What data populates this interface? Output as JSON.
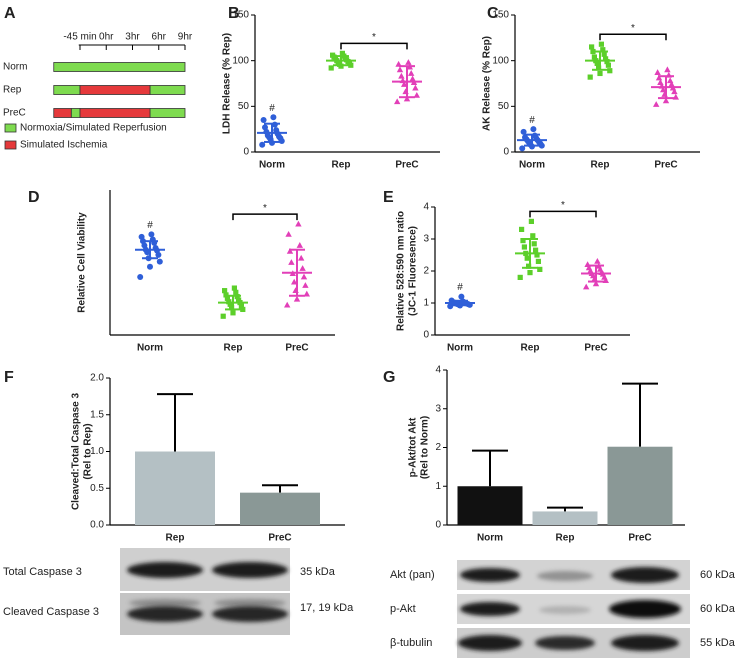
{
  "chart_data": [
    {
      "panel": "A",
      "type": "timeline",
      "xlim": [
        -1.5,
        9
      ],
      "xticks": [
        {
          "value": -0.75,
          "label": "-45 min"
        },
        {
          "value": 0,
          "label": "0hr"
        },
        {
          "value": 3,
          "label": "3hr"
        },
        {
          "value": 6,
          "label": "6hr"
        },
        {
          "value": 9,
          "label": "9hr"
        }
      ],
      "categories": [
        "Norm",
        "Rep",
        "PreC"
      ],
      "series": [
        {
          "name": "Normoxia/Simulated Reperfusion",
          "color": "#7edb4f",
          "segments": [
            [
              [
                -1.5,
                9
              ]
            ],
            [
              [
                -1.5,
                -0.75
              ],
              [
                5,
                9
              ]
            ],
            [
              [
                -1,
                -0.75
              ],
              [
                5,
                9
              ]
            ]
          ]
        },
        {
          "name": "Simulated Ischemia",
          "color": "#e5393b",
          "segments": [
            [],
            [
              [
                -0.75,
                5
              ]
            ],
            [
              [
                -1.5,
                -1
              ],
              [
                -0.75,
                5
              ]
            ]
          ]
        }
      ]
    },
    {
      "panel": "B",
      "type": "dotplot",
      "ylabel": [
        "LDH Release (% Rep)"
      ],
      "ylim": [
        0,
        150
      ],
      "yticks": [
        0,
        50,
        100,
        150
      ],
      "categories": [
        "Norm",
        "Rep",
        "PreC"
      ],
      "hash_label": "#",
      "sig_label": "*",
      "groups": [
        {
          "color": "#2f5fd8",
          "marker": "circle",
          "mean": 21,
          "sd": 10,
          "points": [
            8,
            10,
            12,
            14,
            15,
            16,
            17,
            18,
            20,
            22,
            24,
            27,
            30,
            35,
            38
          ]
        },
        {
          "color": "#5ccf2a",
          "marker": "square",
          "mean": 100,
          "sd": 5,
          "points": [
            92,
            94,
            95,
            96,
            97,
            98,
            99,
            100,
            101,
            102,
            103,
            104,
            105,
            106,
            108
          ]
        },
        {
          "color": "#e23fb8",
          "marker": "triangle",
          "mean": 77,
          "sd": 17,
          "points": [
            55,
            58,
            62,
            66,
            70,
            74,
            76,
            78,
            80,
            83,
            86,
            90,
            93,
            96,
            98
          ]
        }
      ]
    },
    {
      "panel": "C",
      "type": "dotplot",
      "ylabel": [
        "AK Release (% Rep)"
      ],
      "ylim": [
        0,
        150
      ],
      "yticks": [
        0,
        50,
        100,
        150
      ],
      "categories": [
        "Norm",
        "Rep",
        "PreC"
      ],
      "hash_label": "#",
      "sig_label": "*",
      "groups": [
        {
          "color": "#2f5fd8",
          "marker": "circle",
          "mean": 13,
          "sd": 6,
          "points": [
            4,
            6,
            7,
            8,
            9,
            10,
            11,
            12,
            13,
            14,
            15,
            16,
            18,
            22,
            25
          ]
        },
        {
          "color": "#5ccf2a",
          "marker": "square",
          "mean": 100,
          "sd": 10,
          "points": [
            82,
            86,
            89,
            92,
            95,
            97,
            99,
            100,
            102,
            104,
            107,
            110,
            112,
            115,
            118
          ]
        },
        {
          "color": "#e23fb8",
          "marker": "triangle",
          "mean": 71,
          "sd": 12,
          "points": [
            52,
            56,
            60,
            63,
            66,
            68,
            70,
            72,
            74,
            76,
            78,
            81,
            84,
            87,
            90
          ]
        }
      ]
    },
    {
      "panel": "D",
      "type": "dotplot",
      "ylabel": [
        "Relative Cell Viability"
      ],
      "ylim": [
        0,
        1.7
      ],
      "categories": [
        "Norm",
        "Rep",
        "PreC"
      ],
      "hash_label": "#",
      "sig_label": "*",
      "groups": [
        {
          "color": "#2f5fd8",
          "marker": "circle",
          "mean": 1.0,
          "sd": 0.1,
          "points": [
            0.68,
            0.8,
            0.86,
            0.9,
            0.94,
            0.97,
            0.99,
            1.0,
            1.02,
            1.05,
            1.08,
            1.1,
            1.12,
            1.15,
            1.18
          ]
        },
        {
          "color": "#5ccf2a",
          "marker": "square",
          "mean": 0.38,
          "sd": 0.08,
          "points": [
            0.22,
            0.26,
            0.3,
            0.32,
            0.34,
            0.36,
            0.38,
            0.39,
            0.41,
            0.43,
            0.45,
            0.47,
            0.5,
            0.52,
            0.55
          ]
        },
        {
          "color": "#e23fb8",
          "marker": "triangle",
          "mean": 0.73,
          "sd": 0.27,
          "points": [
            0.35,
            0.42,
            0.48,
            0.52,
            0.58,
            0.62,
            0.68,
            0.72,
            0.78,
            0.85,
            0.9,
            0.98,
            1.05,
            1.18,
            1.3
          ]
        }
      ]
    },
    {
      "panel": "E",
      "type": "dotplot",
      "ylabel": [
        "Relative 528:590 nm ratio",
        "(JC-1 Fluoresence)"
      ],
      "ylim": [
        0,
        4
      ],
      "yticks": [
        0,
        1,
        2,
        3,
        4
      ],
      "categories": [
        "Norm",
        "Rep",
        "PreC"
      ],
      "hash_label": "#",
      "sig_label": "*",
      "groups": [
        {
          "color": "#2f5fd8",
          "marker": "circle",
          "mean": 1.0,
          "sd": 0.07,
          "points": [
            0.9,
            0.92,
            0.94,
            0.95,
            0.96,
            0.97,
            0.98,
            0.99,
            1.0,
            1.01,
            1.02,
            1.03,
            1.05,
            1.08,
            1.2
          ]
        },
        {
          "color": "#5ccf2a",
          "marker": "square",
          "mean": 2.55,
          "sd": 0.45,
          "points": [
            1.8,
            1.95,
            2.05,
            2.15,
            2.3,
            2.4,
            2.5,
            2.55,
            2.65,
            2.75,
            2.85,
            2.95,
            3.1,
            3.3,
            3.55
          ]
        },
        {
          "color": "#e23fb8",
          "marker": "triangle",
          "mean": 1.92,
          "sd": 0.25,
          "points": [
            1.5,
            1.6,
            1.7,
            1.75,
            1.8,
            1.85,
            1.9,
            1.92,
            1.95,
            2.0,
            2.05,
            2.1,
            2.15,
            2.2,
            2.3
          ]
        }
      ]
    },
    {
      "panel": "F",
      "type": "bar",
      "ylabel": [
        "Cleaved:Total Caspase 3",
        "(Rel to Rep)"
      ],
      "ylim": [
        0,
        2
      ],
      "yticks": [
        {
          "value": 0,
          "label": "0.0"
        },
        {
          "value": 0.5,
          "label": "0.5"
        },
        {
          "value": 1,
          "label": "1.0"
        },
        {
          "value": 1.5,
          "label": "1.5"
        },
        {
          "value": 2,
          "label": "2.0"
        }
      ],
      "categories": [
        "Rep",
        "PreC"
      ],
      "values": [
        1.0,
        0.44
      ],
      "errors": [
        0.78,
        0.1
      ],
      "colors": [
        "#b4c0c4",
        "#8a9896"
      ],
      "blot": [
        {
          "label": "Total Caspase 3",
          "size": "35 kDa"
        },
        {
          "label": "Cleaved Caspase 3",
          "size": "17, 19 kDa"
        }
      ]
    },
    {
      "panel": "G",
      "type": "bar",
      "ylabel": [
        "p-Akt/tot Akt",
        "(Rel to Norm)"
      ],
      "ylim": [
        0,
        4
      ],
      "yticks": [
        0,
        1,
        2,
        3,
        4
      ],
      "categories": [
        "Norm",
        "Rep",
        "PreC"
      ],
      "values": [
        1.0,
        0.35,
        2.02
      ],
      "errors": [
        0.92,
        0.1,
        1.63
      ],
      "colors": [
        "#111111",
        "#b4c0c4",
        "#8a9896"
      ],
      "blot": [
        {
          "label": "Akt (pan)",
          "size": "60 kDa"
        },
        {
          "label": "p-Akt",
          "size": "60 kDa"
        },
        {
          "label": "β-tubulin",
          "size": "55 kDa"
        }
      ]
    }
  ]
}
